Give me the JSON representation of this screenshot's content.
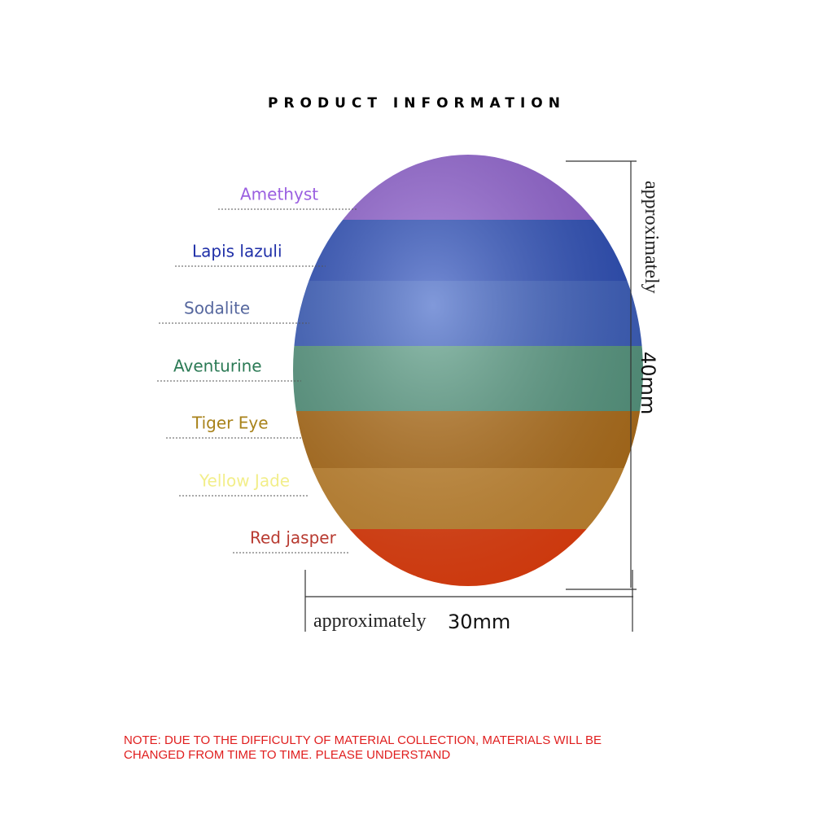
{
  "header": {
    "title": "PRODUCT INFORMATION"
  },
  "stones": [
    "Amethyst",
    "Lapis lazuli",
    "Sodalite",
    "Aventurine",
    "Tiger Eye",
    "Yellow Jade",
    "Red jasper"
  ],
  "dimensions": {
    "height_label": "approximately",
    "height": "40mm",
    "width_label": "approximately",
    "width": "30mm"
  },
  "note": [
    "NOTE: DUE TO THE DIFFICULTY OF MATERIAL COLLECTION, MATERIALS WILL BE",
    "CHANGED FROM TIME TO TIME. PLEASE UNDERSTAND"
  ]
}
